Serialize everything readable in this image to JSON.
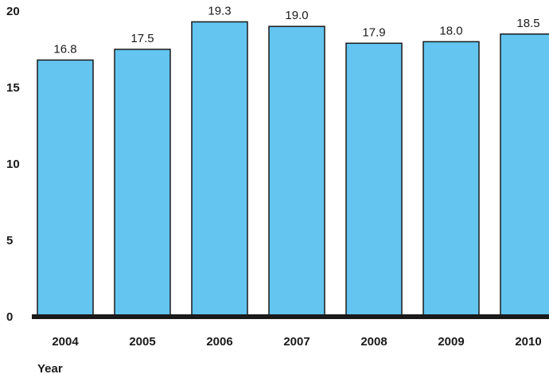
{
  "chart_data": {
    "type": "bar",
    "title": "",
    "xlabel": "Year",
    "ylabel": "",
    "categories": [
      "2004",
      "2005",
      "2006",
      "2007",
      "2008",
      "2009",
      "2010"
    ],
    "values": [
      16.8,
      17.5,
      19.3,
      19.0,
      17.9,
      18.0,
      18.5
    ],
    "data_labels": [
      "16.8",
      "17.5",
      "19.3",
      "19.0",
      "17.9",
      "18.0",
      "18.5"
    ],
    "ylim": [
      0,
      20
    ],
    "yticks": [
      {
        "value": 0,
        "label": "0"
      },
      {
        "value": 5,
        "label": "5"
      },
      {
        "value": 10,
        "label": "10"
      },
      {
        "value": 15,
        "label": "15"
      },
      {
        "value": 20,
        "label": "20"
      }
    ],
    "grid": false,
    "colors": {
      "bar_fill": "#63c5f0",
      "bar_stroke": "#1a1a1a",
      "baseline": "#1a1a1a",
      "text": "#1a1a1a"
    }
  }
}
